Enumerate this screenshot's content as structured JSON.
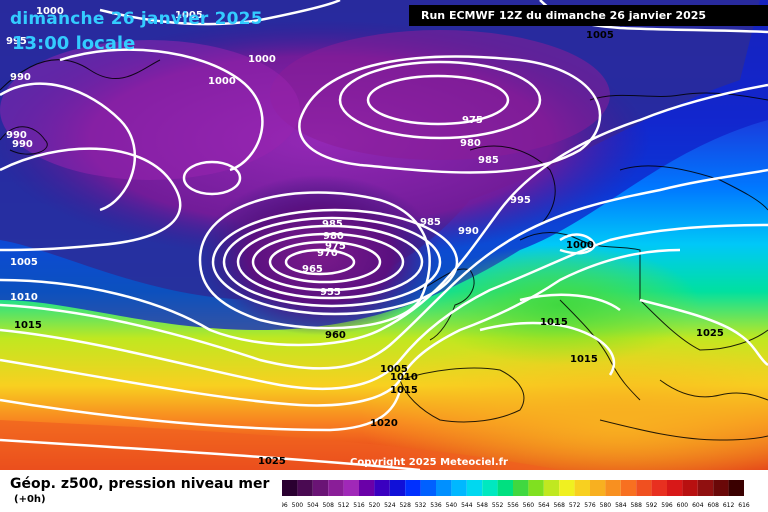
{
  "header": {
    "date": "dimanche 26 janvier 2025",
    "time": "13:00 locale",
    "run": "Run ECMWF 12Z du dimanche 26 janvier 2025"
  },
  "footer": {
    "copyright": "Copyright 2025 Meteociel.fr",
    "legend_title": "Géop. z500, pression niveau mer",
    "legend_sub": "(+0h)"
  },
  "colorbar": {
    "ticks": [
      "496",
      "500",
      "504",
      "508",
      "512",
      "516",
      "520",
      "524",
      "528",
      "532",
      "536",
      "540",
      "544",
      "548",
      "552",
      "556",
      "560",
      "564",
      "568",
      "572",
      "576",
      "580",
      "584",
      "588",
      "592",
      "596",
      "600",
      "604",
      "608",
      "612",
      "616"
    ],
    "colors": [
      "#2a0030",
      "#4a0a52",
      "#6a1475",
      "#8a1e98",
      "#a028b8",
      "#6a00a8",
      "#3a00c0",
      "#1010d8",
      "#0030ff",
      "#0060ff",
      "#0090ff",
      "#00b8ff",
      "#00d8f0",
      "#00e8c0",
      "#00e080",
      "#40d840",
      "#80e020",
      "#c0e820",
      "#f0f020",
      "#f8d020",
      "#f8b020",
      "#f89020",
      "#f87020",
      "#f05020",
      "#e83020",
      "#d81818",
      "#b81010",
      "#901010",
      "#6a0808",
      "#3a0000"
    ]
  },
  "isobars": [
    "1000",
    "995",
    "990",
    "1005",
    "1000",
    "1000",
    "990",
    "990",
    "975",
    "980",
    "985",
    "985",
    "980",
    "975",
    "970",
    "965",
    "955",
    "960",
    "985",
    "990",
    "995",
    "1000",
    "1005",
    "1005",
    "1010",
    "1015",
    "1015",
    "1015",
    "1025",
    "1005",
    "1010",
    "1015",
    "1020",
    "1025"
  ]
}
